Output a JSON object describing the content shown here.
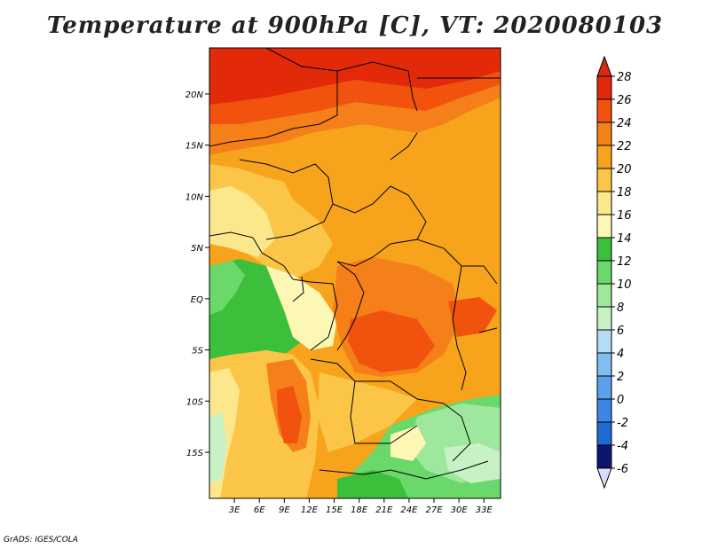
{
  "title": "Temperature at 900hPa [C], VT: 2020080103",
  "credit": "GrADS: IGES/COLA",
  "map": {
    "lat_range": [
      -19.5,
      24.5
    ],
    "lon_range": [
      0,
      35
    ],
    "lat_ticks": [
      {
        "value": 20,
        "label": "20N"
      },
      {
        "value": 15,
        "label": "15N"
      },
      {
        "value": 10,
        "label": "10N"
      },
      {
        "value": 5,
        "label": "5N"
      },
      {
        "value": 0,
        "label": "EQ"
      },
      {
        "value": -5,
        "label": "5S"
      },
      {
        "value": -10,
        "label": "10S"
      },
      {
        "value": -15,
        "label": "15S"
      }
    ],
    "lon_ticks": [
      {
        "value": 3,
        "label": "3E"
      },
      {
        "value": 6,
        "label": "6E"
      },
      {
        "value": 9,
        "label": "9E"
      },
      {
        "value": 12,
        "label": "12E"
      },
      {
        "value": 15,
        "label": "15E"
      },
      {
        "value": 18,
        "label": "18E"
      },
      {
        "value": 21,
        "label": "21E"
      },
      {
        "value": 24,
        "label": "24E"
      },
      {
        "value": 27,
        "label": "27E"
      },
      {
        "value": 30,
        "label": "30E"
      },
      {
        "value": 33,
        "label": "33E"
      }
    ]
  },
  "colorbar": {
    "levels": [
      {
        "label": "28",
        "color": "#e22a0a"
      },
      {
        "label": "26",
        "color": "#f1520e"
      },
      {
        "label": "24",
        "color": "#f57f18"
      },
      {
        "label": "22",
        "color": "#f7a41c"
      },
      {
        "label": "20",
        "color": "#fbc648"
      },
      {
        "label": "18",
        "color": "#fde78c"
      },
      {
        "label": "16",
        "color": "#fdf7b6"
      },
      {
        "label": "14",
        "color": "#3cbf3a"
      },
      {
        "label": "12",
        "color": "#6ad86a"
      },
      {
        "label": "10",
        "color": "#9ee89e"
      },
      {
        "label": "8",
        "color": "#c8f2c6"
      },
      {
        "label": "6",
        "color": "#b4dcf6"
      },
      {
        "label": "4",
        "color": "#82bdf1"
      },
      {
        "label": "2",
        "color": "#5ba0ec"
      },
      {
        "label": "0",
        "color": "#3d86e8"
      },
      {
        "label": "-2",
        "color": "#1f6ad6"
      },
      {
        "label": "-4",
        "color": "#1350c2"
      },
      {
        "label": "-6",
        "color": "#0a2aa0"
      }
    ],
    "top_color": "#d62a12",
    "bottom_color": "#dcdcf8",
    "navy_color": "#0b1670"
  }
}
